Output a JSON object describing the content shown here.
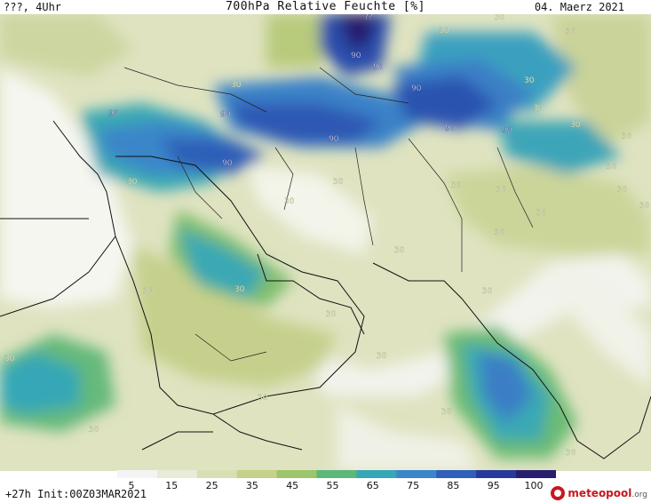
{
  "header": {
    "left": "???, 4Uhr",
    "title": "700hPa Relative Feuchte [%]",
    "date": "04. Maerz 2021"
  },
  "footer": {
    "run": "+27h Init:00Z03MAR2021",
    "logo_name": "meteopool",
    "logo_tld": ".org"
  },
  "legend": {
    "ticks": [
      "5",
      "15",
      "25",
      "35",
      "45",
      "55",
      "65",
      "75",
      "85",
      "95",
      "100"
    ],
    "colors": [
      "#f4f4f4",
      "#e8ebd8",
      "#d9dfb4",
      "#c5d08a",
      "#9cc56c",
      "#5cb77a",
      "#35a7b6",
      "#3a86c9",
      "#2f5fb8",
      "#263a9c",
      "#281e6e"
    ]
  },
  "contour_labels": [
    "??",
    "90",
    "90",
    "90",
    "90",
    "90",
    "90",
    "90",
    "90",
    "90",
    "30",
    "30",
    "30",
    "30",
    "30",
    "30",
    "30",
    "30",
    "30",
    "30",
    "30",
    "30",
    "30",
    "30",
    "30",
    "30",
    "30",
    "30",
    "30",
    "30",
    "30",
    "30",
    "30",
    "30",
    "30",
    "30",
    "30",
    "30",
    "30"
  ]
}
